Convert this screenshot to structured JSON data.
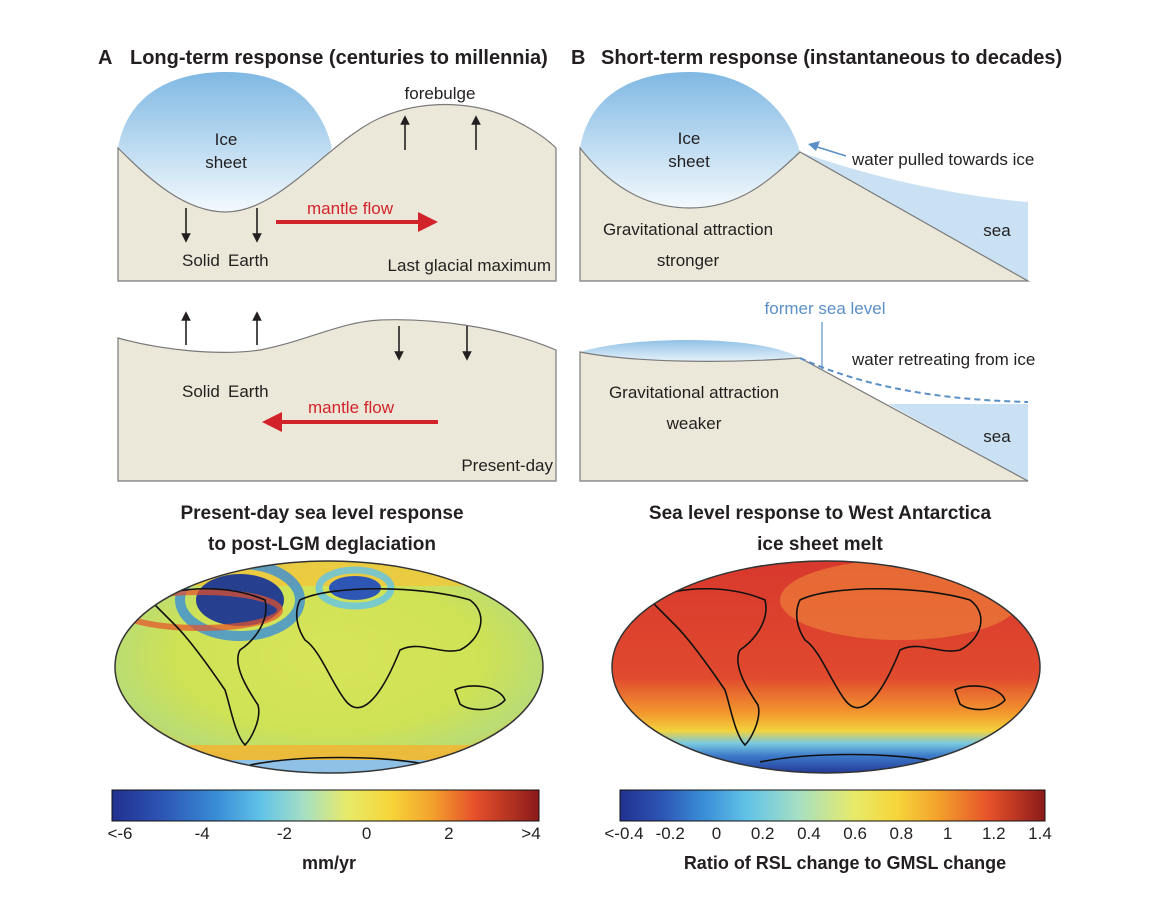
{
  "panelA": {
    "letter": "A",
    "title": "Long-term response (centuries to millennia)",
    "top": {
      "ice_line1": "Ice",
      "ice_line2": "sheet",
      "forebulge": "forebulge",
      "mantle_flow": "mantle flow",
      "solid": "Solid",
      "earth": "Earth",
      "period": "Last glacial maximum"
    },
    "bottom": {
      "solid": "Solid",
      "earth": "Earth",
      "mantle_flow": "mantle flow",
      "period": "Present-day"
    }
  },
  "panelB": {
    "letter": "B",
    "title": "Short-term response (instantaneous to decades)",
    "top": {
      "ice_line1": "Ice",
      "ice_line2": "sheet",
      "water_pulled": "water pulled towards ice",
      "grav_line1": "Gravitational attraction",
      "grav_line2": "stronger",
      "sea": "sea"
    },
    "bottom": {
      "former_sea_level": "former sea level",
      "water_retreating": "water retreating from ice",
      "grav_line1": "Gravitational attraction",
      "grav_line2": "weaker",
      "sea": "sea"
    }
  },
  "mapLeft": {
    "title_line1": "Present-day sea level response",
    "title_line2": "to post-LGM deglaciation",
    "colorbar_ticks": [
      "<-6",
      "-4",
      "-2",
      "0",
      "2",
      ">4"
    ],
    "colorbar_label": "mm/yr"
  },
  "mapRight": {
    "title_line1": "Sea level response to West Antarctica",
    "title_line2": "ice sheet melt",
    "colorbar_ticks": [
      "<-0.4",
      "-0.2",
      "0",
      "0.2",
      "0.4",
      "0.6",
      "0.8",
      "1",
      "1.2",
      "1.4"
    ],
    "colorbar_label": "Ratio of RSL change to GMSL change"
  },
  "colors": {
    "earth_fill": "#ece8d9",
    "ice_light": "#eaf4fb",
    "ice_dark": "#8fc1e6",
    "sea": "#c9e1f2",
    "red_arrow": "#d2232a",
    "blue_text": "#5b8fc7"
  }
}
